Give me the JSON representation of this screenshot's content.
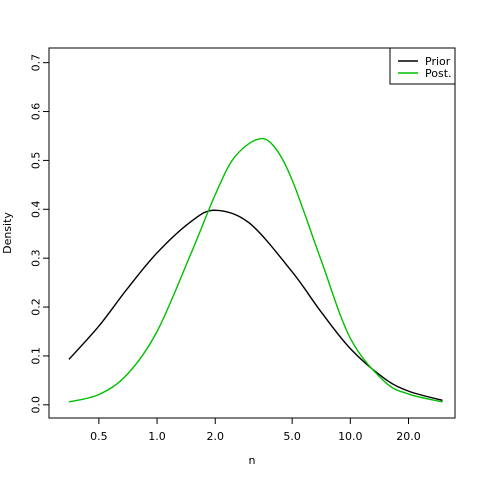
{
  "chart_data": {
    "type": "line",
    "xlabel": "n",
    "ylabel": "Density",
    "x_scale": "log",
    "xlim": [
      0.276,
      34.8
    ],
    "ylim": [
      -0.027,
      0.73
    ],
    "x_ticks": [
      0.5,
      1.0,
      2.0,
      5.0,
      10.0,
      20.0
    ],
    "x_tick_labels": [
      "0.5",
      "1.0",
      "2.0",
      "5.0",
      "10.0",
      "20.0"
    ],
    "y_ticks": [
      0.0,
      0.1,
      0.2,
      0.3,
      0.4,
      0.5,
      0.6,
      0.7
    ],
    "y_tick_labels": [
      "0.0",
      "0.1",
      "0.2",
      "0.3",
      "0.4",
      "0.5",
      "0.6",
      "0.7"
    ],
    "legend_position": "top-right",
    "grid": false,
    "series": [
      {
        "name": "Prior",
        "color": "#000000",
        "x": [
          0.35,
          0.5,
          0.7,
          1.0,
          1.5,
          2.0,
          3.0,
          5.0,
          7.0,
          10.0,
          15.0,
          20.0,
          30.0
        ],
        "y": [
          0.093,
          0.161,
          0.237,
          0.311,
          0.375,
          0.398,
          0.372,
          0.272,
          0.192,
          0.115,
          0.054,
          0.028,
          0.009
        ]
      },
      {
        "name": "Post.",
        "color": "#00c000",
        "x": [
          0.35,
          0.5,
          0.7,
          1.0,
          1.5,
          2.0,
          2.5,
          3.3,
          4.0,
          5.0,
          7.0,
          10.0,
          15.0,
          20.0,
          30.0
        ],
        "y": [
          0.006,
          0.021,
          0.062,
          0.15,
          0.31,
          0.43,
          0.505,
          0.543,
          0.53,
          0.46,
          0.3,
          0.136,
          0.048,
          0.022,
          0.006
        ]
      }
    ]
  }
}
